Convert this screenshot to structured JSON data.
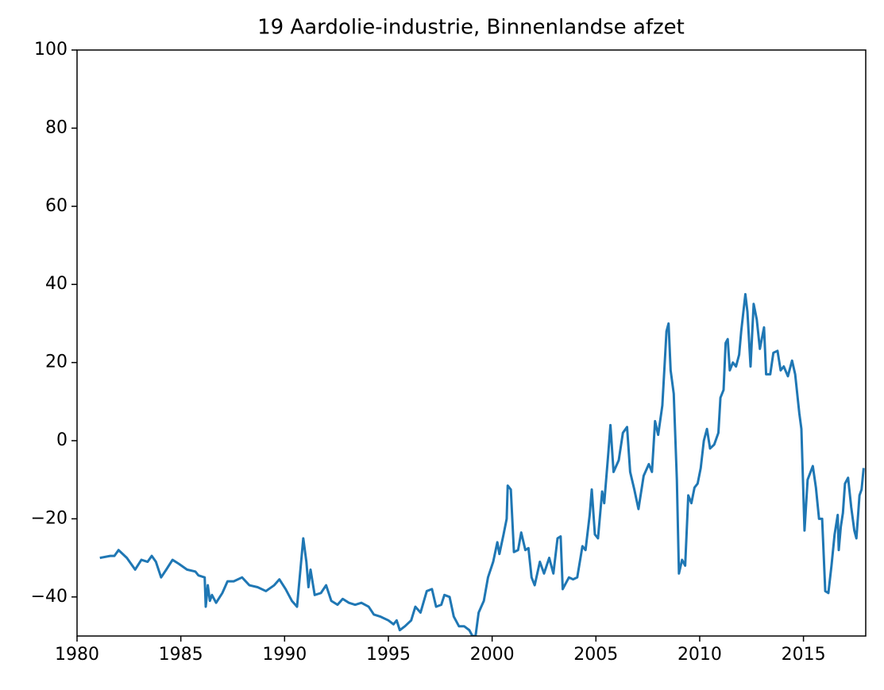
{
  "chart_data": {
    "type": "line",
    "title": "19 Aardolie-industrie, Binnenlandse afzet",
    "x": [
      1981.1,
      1981.6,
      1981.8,
      1982.0,
      1982.4,
      1982.8,
      1983.1,
      1983.4,
      1983.6,
      1983.8,
      1984.05,
      1984.3,
      1984.6,
      1984.9,
      1985.3,
      1985.7,
      1985.85,
      1986.15,
      1986.2,
      1986.3,
      1986.4,
      1986.5,
      1986.7,
      1987.0,
      1987.25,
      1987.55,
      1987.95,
      1988.3,
      1988.7,
      1989.1,
      1989.5,
      1989.75,
      1990.05,
      1990.35,
      1990.6,
      1990.9,
      1991.05,
      1991.15,
      1991.25,
      1991.45,
      1991.75,
      1992.0,
      1992.25,
      1992.55,
      1992.8,
      1993.1,
      1993.4,
      1993.7,
      1994.05,
      1994.3,
      1994.6,
      1995.0,
      1995.25,
      1995.4,
      1995.55,
      1995.8,
      1996.1,
      1996.3,
      1996.55,
      1996.85,
      1997.1,
      1997.3,
      1997.55,
      1997.7,
      1997.95,
      1998.15,
      1998.4,
      1998.65,
      1998.9,
      1999.05,
      1999.2,
      1999.35,
      1999.6,
      1999.8,
      2000.05,
      2000.25,
      2000.35,
      2000.55,
      2000.7,
      2000.75,
      2000.9,
      2001.05,
      2001.25,
      2001.4,
      2001.6,
      2001.75,
      2001.9,
      2002.05,
      2002.3,
      2002.5,
      2002.75,
      2002.95,
      2003.15,
      2003.3,
      2003.4,
      2003.7,
      2003.9,
      2004.1,
      2004.35,
      2004.5,
      2004.7,
      2004.8,
      2004.95,
      2005.1,
      2005.3,
      2005.4,
      2005.6,
      2005.7,
      2005.85,
      2006.1,
      2006.3,
      2006.5,
      2006.65,
      2006.85,
      2007.05,
      2007.3,
      2007.55,
      2007.7,
      2007.85,
      2008.0,
      2008.2,
      2008.4,
      2008.5,
      2008.6,
      2008.75,
      2008.9,
      2009.0,
      2009.15,
      2009.3,
      2009.45,
      2009.6,
      2009.75,
      2009.9,
      2010.05,
      2010.2,
      2010.35,
      2010.5,
      2010.7,
      2010.9,
      2011.0,
      2011.15,
      2011.25,
      2011.35,
      2011.45,
      2011.6,
      2011.75,
      2011.9,
      2012.0,
      2012.2,
      2012.3,
      2012.45,
      2012.6,
      2012.75,
      2012.9,
      2013.1,
      2013.2,
      2013.4,
      2013.55,
      2013.75,
      2013.9,
      2014.05,
      2014.25,
      2014.45,
      2014.6,
      2014.8,
      2014.9,
      2015.05,
      2015.2,
      2015.45,
      2015.6,
      2015.75,
      2015.9,
      2016.05,
      2016.2,
      2016.35,
      2016.5,
      2016.65,
      2016.7,
      2016.8,
      2016.9,
      2017.0,
      2017.15,
      2017.3,
      2017.45,
      2017.55,
      2017.7,
      2017.8,
      2017.9
    ],
    "series": [
      {
        "color": "#1f77b4",
        "values": [
          -30,
          -29.5,
          -29.5,
          -28,
          -30,
          -33,
          -30.5,
          -31,
          -29.5,
          -31,
          -35,
          -33,
          -30.5,
          -31.5,
          -33,
          -33.5,
          -34.5,
          -35,
          -42.5,
          -37,
          -41,
          -39.5,
          -41.5,
          -39,
          -36,
          -36,
          -35,
          -37,
          -37.5,
          -38.5,
          -37,
          -35.5,
          -38,
          -41,
          -42.5,
          -25,
          -31,
          -37.5,
          -33,
          -39.5,
          -39,
          -37,
          -41,
          -42,
          -40.5,
          -41.5,
          -42,
          -41.5,
          -42.5,
          -44.5,
          -45,
          -46,
          -47,
          -46,
          -48.5,
          -47.5,
          -46,
          -42.5,
          -44,
          -38.5,
          -38,
          -42.5,
          -42,
          -39.5,
          -40,
          -45,
          -47.5,
          -47.5,
          -48.5,
          -50,
          -50,
          -44,
          -41,
          -35,
          -31,
          -26,
          -29,
          -24,
          -20,
          -11.5,
          -12.5,
          -28.5,
          -28,
          -23.5,
          -28,
          -27.5,
          -35,
          -37,
          -31,
          -34,
          -30,
          -34,
          -25,
          -24.5,
          -38,
          -35,
          -35.5,
          -35,
          -27,
          -28,
          -19,
          -12.5,
          -24,
          -25,
          -13,
          -16,
          -3,
          4,
          -8,
          -5,
          2,
          3.5,
          -8,
          -12.5,
          -17.5,
          -9,
          -6,
          -8,
          5,
          1.5,
          9,
          28,
          30,
          18,
          12,
          -10,
          -34,
          -30.5,
          -32,
          -14,
          -16,
          -12,
          -11,
          -7,
          0,
          3,
          -2,
          -1,
          2,
          11,
          13,
          25,
          26,
          18,
          20,
          19,
          22,
          28,
          37.5,
          33,
          19,
          35,
          31,
          23.5,
          29,
          17,
          17,
          22.5,
          23,
          18,
          19,
          16.5,
          20.5,
          17,
          7,
          3,
          -23,
          -10,
          -6.5,
          -12,
          -20,
          -20,
          -38.5,
          -39,
          -32,
          -24,
          -19,
          -28,
          -22,
          -18.5,
          -11,
          -9.5,
          -17,
          -23,
          -25,
          -14,
          -12.5,
          -7
        ]
      }
    ],
    "xlim": [
      1980,
      2018
    ],
    "xticks": [
      1980,
      1985,
      1990,
      1995,
      2000,
      2005,
      2010,
      2015
    ],
    "ylim": [
      -50,
      100
    ],
    "yticks": [
      {
        "value": -40,
        "label": "−40"
      },
      {
        "value": -20,
        "label": "−20"
      },
      0,
      20,
      40,
      60,
      80,
      100
    ]
  }
}
